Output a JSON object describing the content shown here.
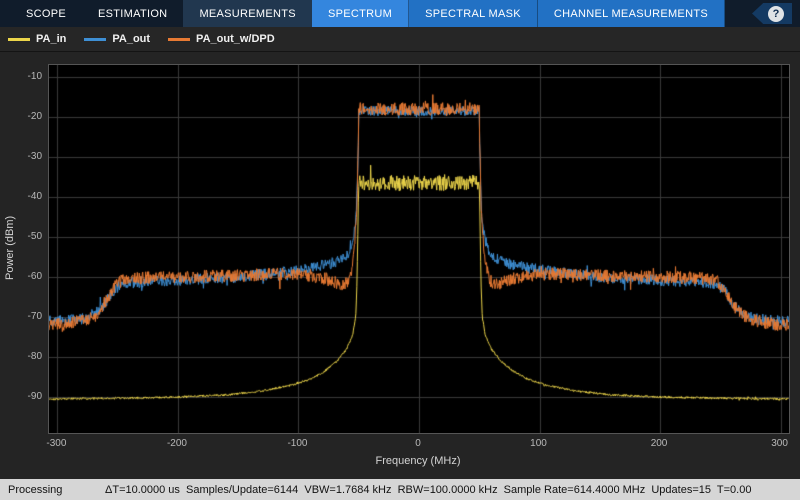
{
  "toolbar": {
    "tabs": [
      {
        "label": "SCOPE",
        "group": "main",
        "active": false
      },
      {
        "label": "ESTIMATION",
        "group": "main",
        "active": false
      },
      {
        "label": "MEASUREMENTS",
        "group": "main",
        "active": true
      },
      {
        "label": "SPECTRUM",
        "group": "contextual",
        "active": true
      },
      {
        "label": "SPECTRAL MASK",
        "group": "contextual",
        "active": false
      },
      {
        "label": "CHANNEL MEASUREMENTS",
        "group": "contextual",
        "active": false
      }
    ],
    "help_label": "?"
  },
  "chart_data": {
    "type": "line",
    "title": "",
    "xlabel": "Frequency (MHz)",
    "ylabel": "Power (dBm)",
    "xlim": [
      -307,
      307
    ],
    "ylim": [
      -99,
      -7
    ],
    "xticks": [
      -300,
      -200,
      -100,
      0,
      100,
      200,
      300
    ],
    "yticks": [
      -10,
      -20,
      -30,
      -40,
      -50,
      -60,
      -70,
      -80,
      -90
    ],
    "grid": true,
    "legend_position": "top-strip",
    "series": [
      {
        "name": "PA_in",
        "color": "#ecd54a",
        "band": [
          -49.8,
          49.8
        ],
        "noise_in": 2.0,
        "noise_out": 0.25,
        "envelope": [
          [
            -307,
            -90.5
          ],
          [
            -250,
            -90.3
          ],
          [
            -200,
            -90
          ],
          [
            -160,
            -89.5
          ],
          [
            -130,
            -88.5
          ],
          [
            -105,
            -87
          ],
          [
            -90,
            -85.5
          ],
          [
            -78,
            -83.5
          ],
          [
            -68,
            -81
          ],
          [
            -60,
            -78
          ],
          [
            -55,
            -74.5
          ],
          [
            -52.5,
            -70
          ],
          [
            -51.5,
            -62
          ],
          [
            -50.8,
            -50
          ],
          [
            -50.2,
            -38.5
          ],
          [
            -49.8,
            -36.5
          ],
          [
            49.8,
            -36.5
          ],
          [
            50.2,
            -38.5
          ],
          [
            50.8,
            -50
          ],
          [
            51.5,
            -62
          ],
          [
            52.5,
            -70
          ],
          [
            55,
            -74.5
          ],
          [
            60,
            -78
          ],
          [
            68,
            -81
          ],
          [
            78,
            -83.5
          ],
          [
            90,
            -85.5
          ],
          [
            105,
            -87
          ],
          [
            130,
            -88.5
          ],
          [
            160,
            -89.5
          ],
          [
            200,
            -90
          ],
          [
            250,
            -90.3
          ],
          [
            307,
            -90.5
          ]
        ]
      },
      {
        "name": "PA_out",
        "color": "#3e8fd4",
        "band": [
          -50,
          50
        ],
        "noise_in": 1.2,
        "noise_out": 1.4,
        "envelope": [
          [
            -307,
            -71
          ],
          [
            -295,
            -71
          ],
          [
            -280,
            -70.5
          ],
          [
            -268,
            -69
          ],
          [
            -260,
            -66.5
          ],
          [
            -254,
            -63.5
          ],
          [
            -248,
            -62
          ],
          [
            -235,
            -61.3
          ],
          [
            -210,
            -61
          ],
          [
            -180,
            -60.5
          ],
          [
            -150,
            -60
          ],
          [
            -120,
            -59
          ],
          [
            -95,
            -58
          ],
          [
            -75,
            -56.8
          ],
          [
            -62,
            -55.5
          ],
          [
            -57,
            -53
          ],
          [
            -54,
            -49.5
          ],
          [
            -52,
            -44
          ],
          [
            -50.5,
            -30
          ],
          [
            -50,
            -18.5
          ],
          [
            50,
            -18.5
          ],
          [
            50.5,
            -30
          ],
          [
            52,
            -44
          ],
          [
            54,
            -49.5
          ],
          [
            57,
            -53
          ],
          [
            62,
            -55.5
          ],
          [
            75,
            -56.8
          ],
          [
            95,
            -58
          ],
          [
            120,
            -59
          ],
          [
            150,
            -60
          ],
          [
            180,
            -60.5
          ],
          [
            210,
            -61
          ],
          [
            235,
            -61.3
          ],
          [
            248,
            -62
          ],
          [
            254,
            -63.5
          ],
          [
            260,
            -66.5
          ],
          [
            268,
            -69
          ],
          [
            280,
            -70.5
          ],
          [
            295,
            -71
          ],
          [
            307,
            -71
          ]
        ]
      },
      {
        "name": "PA_out_w/DPD",
        "color": "#e87a33",
        "band": [
          -49.9,
          49.9
        ],
        "noise_in": 1.6,
        "noise_out": 1.6,
        "envelope": [
          [
            -307,
            -72
          ],
          [
            -295,
            -71.8
          ],
          [
            -280,
            -71
          ],
          [
            -268,
            -69.5
          ],
          [
            -261,
            -67
          ],
          [
            -254,
            -63
          ],
          [
            -247,
            -61
          ],
          [
            -235,
            -60.3
          ],
          [
            -200,
            -60
          ],
          [
            -170,
            -59.8
          ],
          [
            -140,
            -59.6
          ],
          [
            -115,
            -59.2
          ],
          [
            -95,
            -59.4
          ],
          [
            -80,
            -60.2
          ],
          [
            -70,
            -61.2
          ],
          [
            -64,
            -62
          ],
          [
            -59,
            -61
          ],
          [
            -56,
            -58
          ],
          [
            -53.5,
            -52
          ],
          [
            -51.5,
            -42
          ],
          [
            -50.3,
            -25
          ],
          [
            -49.9,
            -18
          ],
          [
            49.9,
            -18
          ],
          [
            50.3,
            -25
          ],
          [
            51.5,
            -42
          ],
          [
            53.5,
            -52
          ],
          [
            56,
            -58
          ],
          [
            59,
            -61
          ],
          [
            64,
            -62
          ],
          [
            70,
            -61.2
          ],
          [
            80,
            -60.2
          ],
          [
            95,
            -59.4
          ],
          [
            115,
            -59.2
          ],
          [
            140,
            -59.6
          ],
          [
            170,
            -59.8
          ],
          [
            200,
            -60
          ],
          [
            235,
            -60.3
          ],
          [
            247,
            -61
          ],
          [
            254,
            -63
          ],
          [
            261,
            -67
          ],
          [
            268,
            -69.5
          ],
          [
            280,
            -71
          ],
          [
            295,
            -71.8
          ],
          [
            307,
            -72
          ]
        ]
      }
    ]
  },
  "status_bar": {
    "state": "Processing",
    "metrics": "ΔT=10.0000 us  Samples/Update=6144  VBW=1.7684 kHz  RBW=100.0000 kHz  Sample Rate=614.4000 MHz  Updates=15  T=0.00"
  }
}
